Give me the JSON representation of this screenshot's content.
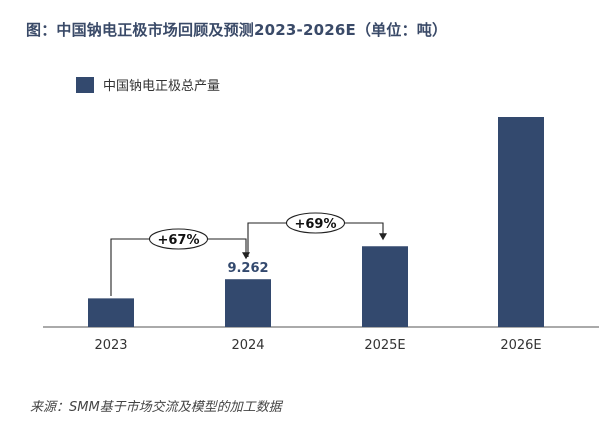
{
  "title": "图：中国钠电正极市场回顾及预测2023-2026E（单位：吨）",
  "source": "来源：SMM基于市场交流及模型的加工数据",
  "colors": {
    "bar": "#33496e",
    "title": "#3a4a68",
    "watermark": "#e8a3a3"
  },
  "chart_data": {
    "type": "bar",
    "categories": [
      "2023",
      "2024",
      "2025E",
      "2026E"
    ],
    "series": [
      {
        "name": "中国钠电正极总产量",
        "values": [
          5.55,
          9.262,
          15.65,
          40.7
        ]
      }
    ],
    "data_labels": [
      {
        "category": "2024",
        "label": "9.262"
      }
    ],
    "annotations": [
      {
        "from": "2023",
        "to": "2024",
        "label": "+67%"
      },
      {
        "from": "2024",
        "to": "2025E",
        "label": "+69%"
      }
    ],
    "ylim": [
      0,
      40.7
    ],
    "grid": false,
    "legend": "top-left"
  }
}
